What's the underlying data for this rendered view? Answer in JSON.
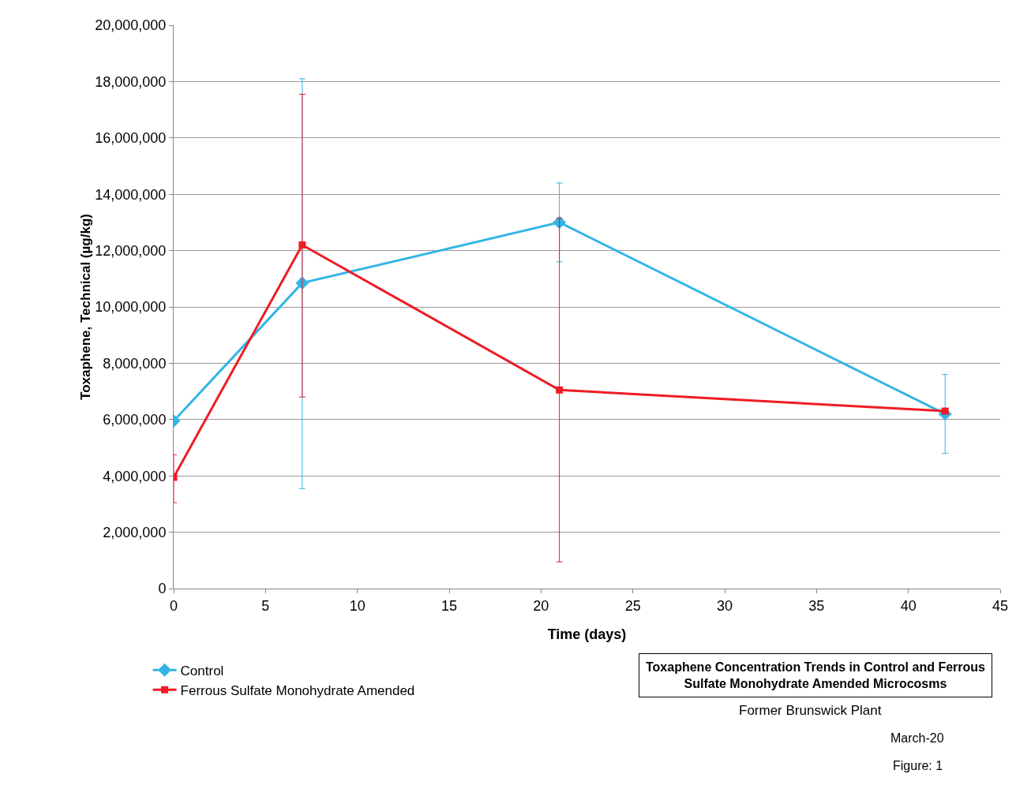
{
  "chart_data": {
    "type": "line",
    "xlabel": "Time (days)",
    "ylabel": "Toxaphene, Technical (µg/kg)",
    "title": "Toxaphene Concentration Trends in Control and Ferrous Sulfate Monohydrate Amended Microcosms",
    "subtitle": "Former Brunswick Plant",
    "annotations": [
      "March-20",
      "Figure: 1"
    ],
    "x": [
      0,
      7,
      21,
      42
    ],
    "series": [
      {
        "name": "Control",
        "color": "#33b5e5",
        "marker": "diamond",
        "values": [
          5950000,
          10850000,
          13000000,
          6200000
        ],
        "errors": [
          null,
          [
            3550000,
            18100000
          ],
          [
            11600000,
            14400000
          ],
          [
            4800000,
            7600000
          ]
        ]
      },
      {
        "name": "Ferrous Sulfate Monohydrate Amended",
        "color": "#ee1c25",
        "marker": "square",
        "values": [
          3950000,
          12200000,
          7050000,
          6300000
        ],
        "errors": [
          [
            3050000,
            4750000
          ],
          [
            6800000,
            17550000
          ],
          [
            950000,
            13150000
          ],
          null
        ]
      }
    ],
    "xlim": [
      0,
      45
    ],
    "xticks": [
      0,
      5,
      10,
      15,
      20,
      25,
      30,
      35,
      40,
      45
    ],
    "ylim": [
      0,
      20000000
    ],
    "yticks": [
      {
        "value": 0,
        "label": "0"
      },
      {
        "value": 2000000,
        "label": "2,000,000"
      },
      {
        "value": 4000000,
        "label": "4,000,000"
      },
      {
        "value": 6000000,
        "label": "6,000,000"
      },
      {
        "value": 8000000,
        "label": "8,000,000"
      },
      {
        "value": 10000000,
        "label": "10,000,000"
      },
      {
        "value": 12000000,
        "label": "12,000,000"
      },
      {
        "value": 14000000,
        "label": "14,000,000"
      },
      {
        "value": 16000000,
        "label": "16,000,000"
      },
      {
        "value": 18000000,
        "label": "18,000,000"
      },
      {
        "value": 20000000,
        "label": "20,000,000"
      }
    ],
    "grid": "y",
    "legend": "bottom left",
    "line_style": "solid"
  }
}
